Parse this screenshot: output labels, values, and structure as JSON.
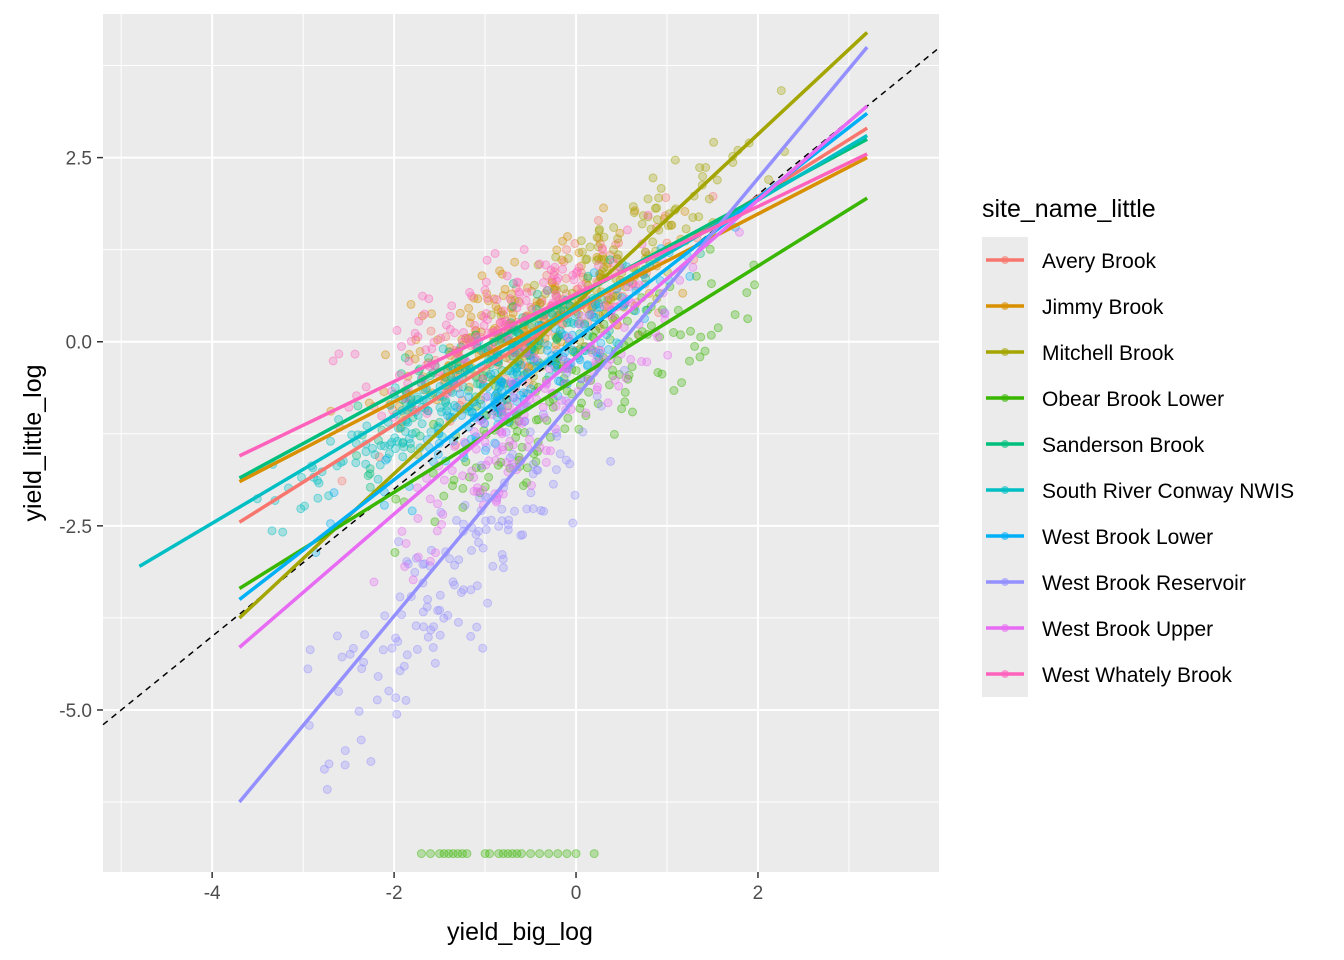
{
  "chart_data": {
    "type": "scatter",
    "title": "",
    "xlabel": "yield_big_log",
    "ylabel": "yield_little_log",
    "xlim": [
      -5.2,
      3.99
    ],
    "ylim": [
      -7.2,
      4.45
    ],
    "x_ticks": [
      -4,
      -2,
      0,
      2
    ],
    "x_tick_labels": [
      "-4",
      "-2",
      "0",
      "2"
    ],
    "y_ticks": [
      -5.0,
      -2.5,
      0.0,
      2.5
    ],
    "y_tick_labels": [
      "-5.0",
      "-2.5",
      "0.0",
      "2.5"
    ],
    "grid": true,
    "panel_background": "#ebebeb",
    "legend": {
      "title": "site_name_little",
      "position": "right"
    },
    "reference_line": {
      "style": "dashed",
      "color": "#000000",
      "slope": 1,
      "intercept": 0
    },
    "series": [
      {
        "name": "Avery Brook",
        "color": "#F8766D",
        "fit": [
          [
            -3.7,
            -2.45
          ],
          [
            3.2,
            2.9
          ]
        ],
        "x_range": [
          -3.7,
          3.2
        ],
        "center": [
          -0.4,
          0.2
        ],
        "slope": 0.78,
        "spread": 0.55
      },
      {
        "name": "Jimmy Brook",
        "color": "#D89000",
        "fit": [
          [
            -3.7,
            -1.9
          ],
          [
            3.2,
            2.5
          ]
        ],
        "x_range": [
          -3.7,
          3.2
        ],
        "center": [
          -0.6,
          0.3
        ],
        "slope": 0.64,
        "spread": 0.55
      },
      {
        "name": "Mitchell Brook",
        "color": "#A3A500",
        "fit": [
          [
            -3.7,
            -3.75
          ],
          [
            3.2,
            4.2
          ]
        ],
        "x_range": [
          -3.7,
          3.2
        ],
        "center": [
          0.2,
          0.8
        ],
        "slope": 0.95,
        "spread": 0.6
      },
      {
        "name": "Obear Brook Lower",
        "color": "#39B600",
        "fit": [
          [
            -3.7,
            -3.35
          ],
          [
            3.2,
            1.95
          ]
        ],
        "x_range": [
          -3.7,
          3.2
        ],
        "center": [
          0.1,
          -0.6
        ],
        "slope": 0.77,
        "spread": 0.7
      },
      {
        "name": "Sanderson Brook",
        "color": "#00BF7D",
        "fit": [
          [
            -3.7,
            -1.85
          ],
          [
            3.2,
            2.75
          ]
        ],
        "x_range": [
          -3.7,
          3.2
        ],
        "center": [
          -0.8,
          -0.2
        ],
        "slope": 0.67,
        "spread": 0.45
      },
      {
        "name": "South River Conway NWIS",
        "color": "#00BFC4",
        "fit": [
          [
            -4.8,
            -3.05
          ],
          [
            3.2,
            2.8
          ]
        ],
        "x_range": [
          -4.8,
          3.2
        ],
        "center": [
          -1.5,
          -0.8
        ],
        "slope": 0.73,
        "spread": 0.4
      },
      {
        "name": "West Brook Lower",
        "color": "#00B0F6",
        "fit": [
          [
            -3.7,
            -3.5
          ],
          [
            3.2,
            3.1
          ]
        ],
        "x_range": [
          -3.7,
          3.2
        ],
        "center": [
          -0.6,
          -0.6
        ],
        "slope": 0.96,
        "spread": 0.45
      },
      {
        "name": "West Brook Reservoir",
        "color": "#9590FF",
        "fit": [
          [
            -3.7,
            -6.25
          ],
          [
            3.2,
            4.0
          ]
        ],
        "x_range": [
          -3.7,
          3.2
        ],
        "center": [
          -1.3,
          -3.0
        ],
        "slope": 1.49,
        "spread": 0.9
      },
      {
        "name": "West Brook Upper",
        "color": "#E76BF3",
        "fit": [
          [
            -3.7,
            -4.15
          ],
          [
            3.2,
            3.2
          ]
        ],
        "x_range": [
          -3.7,
          3.2
        ],
        "center": [
          -0.4,
          -0.9
        ],
        "slope": 1.07,
        "spread": 0.65
      },
      {
        "name": "West Whately Brook",
        "color": "#FF62BC",
        "fit": [
          [
            -3.7,
            -1.55
          ],
          [
            3.2,
            2.55
          ]
        ],
        "x_range": [
          -3.7,
          3.2
        ],
        "center": [
          -0.9,
          0.3
        ],
        "slope": 0.59,
        "spread": 0.55
      }
    ],
    "extra_points": [
      {
        "series": "Obear Brook Lower",
        "y": -6.95,
        "x": [
          -1.7,
          -1.6,
          -1.5,
          -1.45,
          -1.4,
          -1.35,
          -1.3,
          -1.25,
          -1.2,
          -1.0,
          -0.95,
          -0.85,
          -0.8,
          -0.75,
          -0.7,
          -0.65,
          -0.6,
          -0.5,
          -0.4,
          -0.3,
          -0.2,
          -0.1,
          0.0,
          0.2
        ]
      }
    ]
  }
}
